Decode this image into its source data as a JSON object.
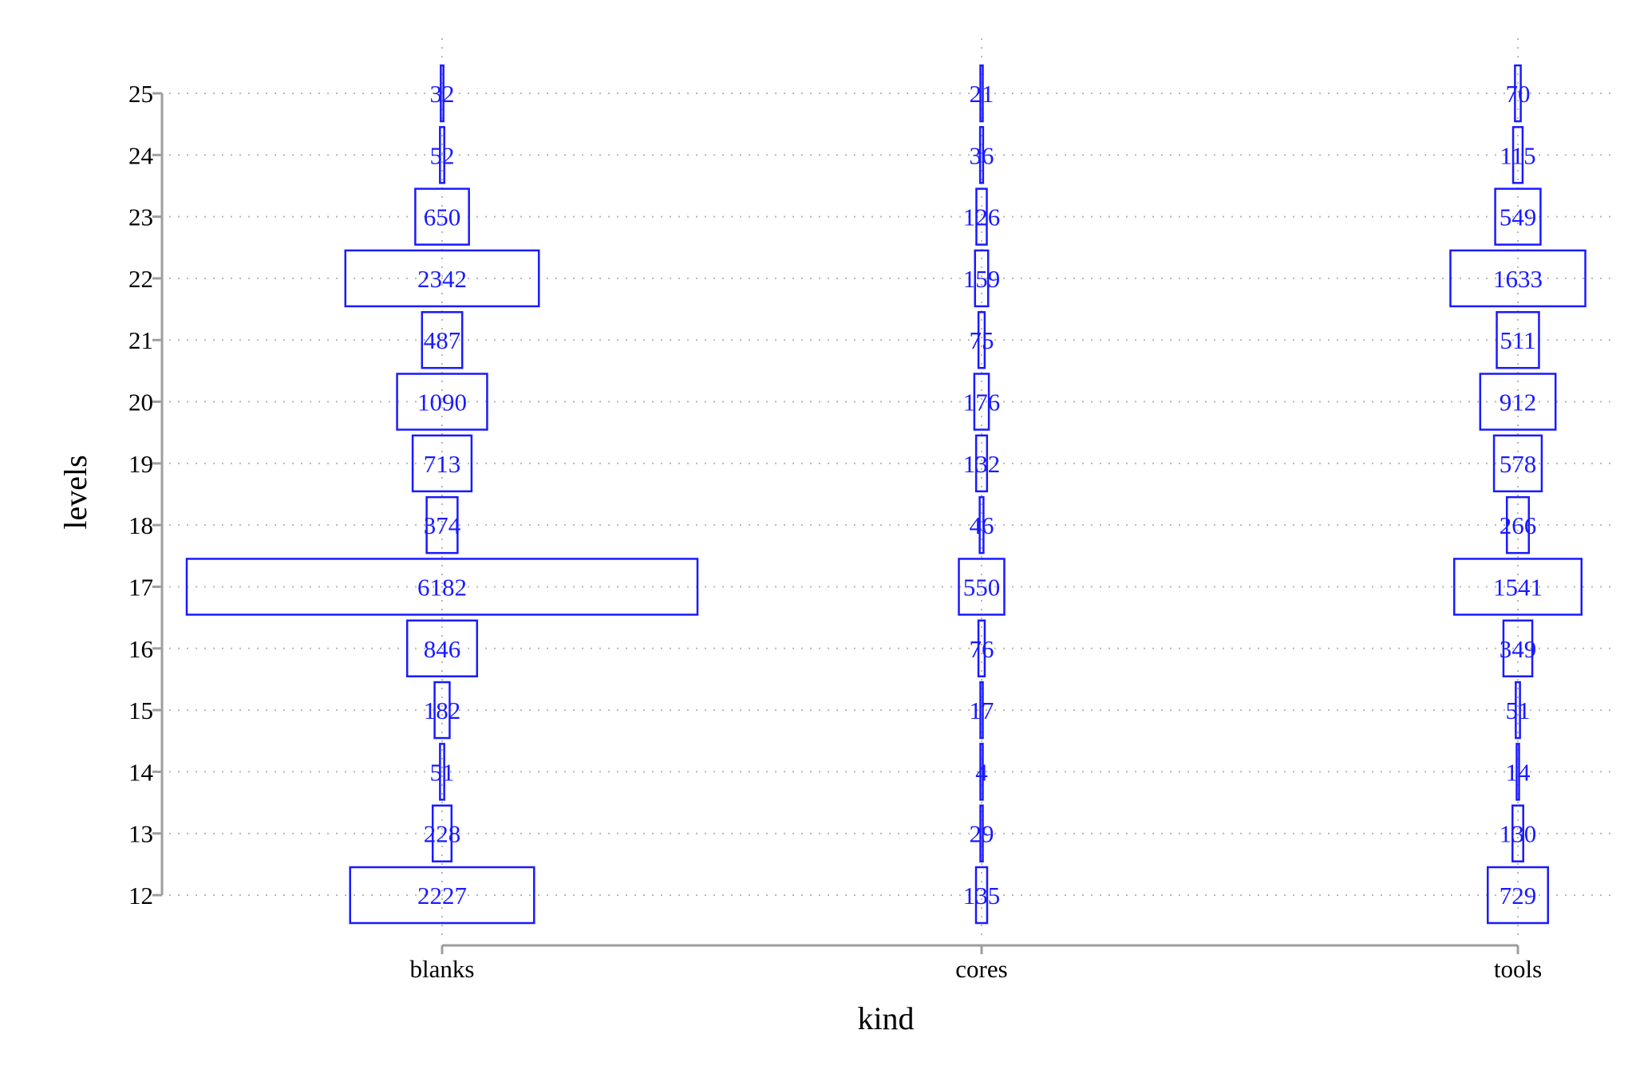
{
  "chart_data": {
    "type": "table",
    "xlabel": "kind",
    "ylabel": "levels",
    "categories": [
      "blanks",
      "cores",
      "tools"
    ],
    "levels": [
      12,
      13,
      14,
      15,
      16,
      17,
      18,
      19,
      20,
      21,
      22,
      23,
      24,
      25
    ],
    "grid": true,
    "colors": {
      "mark": "#1a1aff",
      "grid": "#b8b8b8",
      "axis": "#9e9e9e"
    },
    "cells": [
      {
        "kind": "blanks",
        "level": 12,
        "count": "2227"
      },
      {
        "kind": "blanks",
        "level": 13,
        "count": "228"
      },
      {
        "kind": "blanks",
        "level": 14,
        "count": "51"
      },
      {
        "kind": "blanks",
        "level": 15,
        "count": "182"
      },
      {
        "kind": "blanks",
        "level": 16,
        "count": "846"
      },
      {
        "kind": "blanks",
        "level": 17,
        "count": "6182"
      },
      {
        "kind": "blanks",
        "level": 18,
        "count": "374"
      },
      {
        "kind": "blanks",
        "level": 19,
        "count": "713"
      },
      {
        "kind": "blanks",
        "level": 20,
        "count": "1090"
      },
      {
        "kind": "blanks",
        "level": 21,
        "count": "487"
      },
      {
        "kind": "blanks",
        "level": 22,
        "count": "2342"
      },
      {
        "kind": "blanks",
        "level": 23,
        "count": "650"
      },
      {
        "kind": "blanks",
        "level": 24,
        "count": "52"
      },
      {
        "kind": "blanks",
        "level": 25,
        "count": "32"
      },
      {
        "kind": "cores",
        "level": 12,
        "count": "135"
      },
      {
        "kind": "cores",
        "level": 13,
        "count": "29"
      },
      {
        "kind": "cores",
        "level": 14,
        "count": "4"
      },
      {
        "kind": "cores",
        "level": 15,
        "count": "17"
      },
      {
        "kind": "cores",
        "level": 16,
        "count": "76"
      },
      {
        "kind": "cores",
        "level": 17,
        "count": "550"
      },
      {
        "kind": "cores",
        "level": 18,
        "count": "46"
      },
      {
        "kind": "cores",
        "level": 19,
        "count": "132"
      },
      {
        "kind": "cores",
        "level": 20,
        "count": "176"
      },
      {
        "kind": "cores",
        "level": 21,
        "count": "75"
      },
      {
        "kind": "cores",
        "level": 22,
        "count": "159"
      },
      {
        "kind": "cores",
        "level": 23,
        "count": "126"
      },
      {
        "kind": "cores",
        "level": 24,
        "count": "36"
      },
      {
        "kind": "cores",
        "level": 25,
        "count": "21"
      },
      {
        "kind": "tools",
        "level": 12,
        "count": "729"
      },
      {
        "kind": "tools",
        "level": 13,
        "count": "130"
      },
      {
        "kind": "tools",
        "level": 14,
        "count": "14"
      },
      {
        "kind": "tools",
        "level": 15,
        "count": "51"
      },
      {
        "kind": "tools",
        "level": 16,
        "count": "349"
      },
      {
        "kind": "tools",
        "level": 17,
        "count": "1541"
      },
      {
        "kind": "tools",
        "level": 18,
        "count": "266"
      },
      {
        "kind": "tools",
        "level": 19,
        "count": "578"
      },
      {
        "kind": "tools",
        "level": 20,
        "count": "912"
      },
      {
        "kind": "tools",
        "level": 21,
        "count": "511"
      },
      {
        "kind": "tools",
        "level": 22,
        "count": "1633"
      },
      {
        "kind": "tools",
        "level": 23,
        "count": "549"
      },
      {
        "kind": "tools",
        "level": 24,
        "count": "115"
      },
      {
        "kind": "tools",
        "level": 25,
        "count": "70"
      }
    ]
  }
}
